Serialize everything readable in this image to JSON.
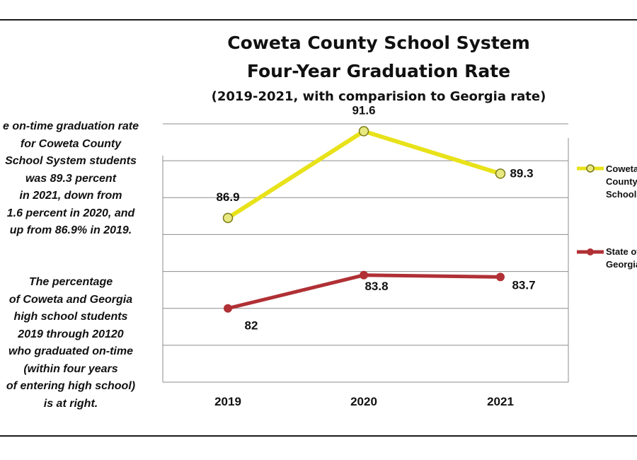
{
  "chart_data": {
    "type": "line",
    "title": [
      "Coweta County School System",
      "Four-Year Graduation Rate"
    ],
    "subtitle": "(2019-2021, with comparision to Georgia rate)",
    "categories": [
      "2019",
      "2020",
      "2021"
    ],
    "series": [
      {
        "name": [
          "Coweta",
          "County",
          "Schools"
        ],
        "values": [
          86.9,
          91.6,
          89.3
        ],
        "color": "#e8e21a",
        "marker": "circle"
      },
      {
        "name": [
          "State of",
          "Georgia"
        ],
        "values": [
          82,
          83.8,
          83.7
        ],
        "color": "#b03035",
        "marker": "dot"
      }
    ],
    "data_labels": [
      [
        "86.9",
        "91.6",
        "89.3"
      ],
      [
        "82",
        "83.8",
        "83.7"
      ]
    ],
    "ylim": [
      78,
      92
    ],
    "grid": true,
    "legend_position": "right"
  },
  "notes": {
    "top": [
      "e on-time graduation rate",
      "for Coweta County",
      "School System students",
      "was 89.3 percent",
      "in 2021, down from",
      "1.6 percent in 2020, and",
      "up from 86.9% in 2019."
    ],
    "bottom": [
      "The percentage",
      "of Coweta and Georgia",
      "high school students",
      "2019 through 20120",
      "who graduated on-time",
      "(within four years",
      "of entering high school)",
      "is at right."
    ]
  }
}
